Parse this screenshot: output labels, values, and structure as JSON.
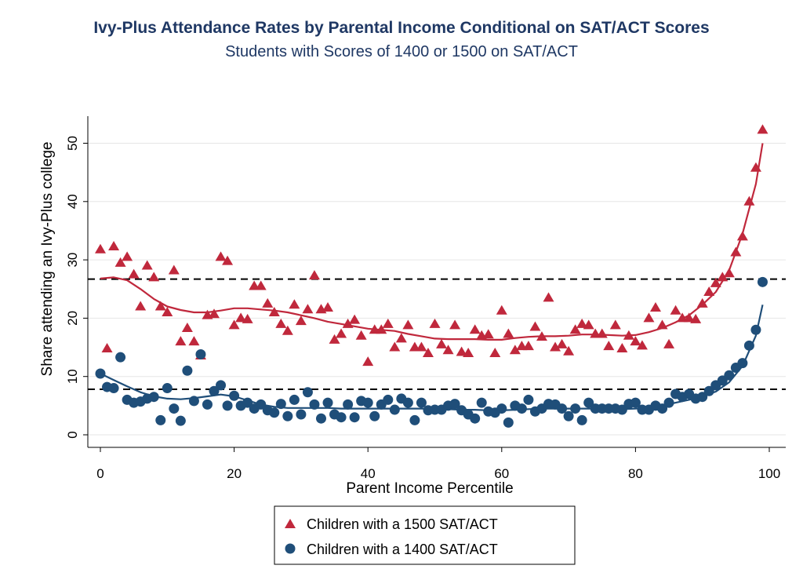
{
  "chart_data": {
    "type": "scatter",
    "title": "Ivy-Plus Attendance Rates by Parental Income Conditional on SAT/ACT Scores",
    "subtitle": "Students with Scores of 1400 or 1500 on SAT/ACT",
    "xlabel": "Parent Income Percentile",
    "ylabel": "Share attending an Ivy-Plus college",
    "xlim": [
      0,
      100
    ],
    "ylim": [
      0,
      53
    ],
    "x_ticks": [
      0,
      20,
      40,
      60,
      80,
      100
    ],
    "y_ticks": [
      0,
      10,
      20,
      30,
      40,
      50
    ],
    "grid": true,
    "legend_position": "bottom-center",
    "reference_lines": [
      26.7,
      7.8
    ],
    "series": [
      {
        "name": "Children with a 1500 SAT/ACT",
        "marker": "triangle",
        "color": "#c0283c",
        "x": [
          0,
          1,
          2,
          3,
          4,
          5,
          6,
          7,
          8,
          9,
          10,
          11,
          12,
          13,
          14,
          15,
          16,
          17,
          18,
          19,
          20,
          21,
          22,
          23,
          24,
          25,
          26,
          27,
          28,
          29,
          30,
          31,
          32,
          33,
          34,
          35,
          36,
          37,
          38,
          39,
          40,
          41,
          42,
          43,
          44,
          45,
          46,
          47,
          48,
          49,
          50,
          51,
          52,
          53,
          54,
          55,
          56,
          57,
          58,
          59,
          60,
          61,
          62,
          63,
          64,
          65,
          66,
          67,
          68,
          69,
          70,
          71,
          72,
          73,
          74,
          75,
          76,
          77,
          78,
          79,
          80,
          81,
          82,
          83,
          84,
          85,
          86,
          87,
          88,
          89,
          90,
          91,
          92,
          93,
          94,
          95,
          96,
          97,
          98,
          99
        ],
        "y": [
          31.8,
          14.8,
          32.3,
          29.5,
          30.5,
          27.5,
          22,
          29,
          27,
          22,
          21,
          28.2,
          16,
          18.3,
          16,
          13.6,
          20.5,
          20.7,
          30.5,
          29.8,
          18.8,
          20,
          19.8,
          25.5,
          25.5,
          22.5,
          21,
          19,
          17.8,
          22.3,
          19.5,
          21.5,
          27.3,
          21.5,
          21.8,
          16.3,
          17.3,
          19,
          19.7,
          17,
          12.5,
          18,
          18,
          19,
          15,
          16.5,
          18.8,
          15,
          15,
          14,
          19,
          15.5,
          14.5,
          18.8,
          14.2,
          14,
          18,
          17,
          17.2,
          14,
          21.3,
          17.3,
          14.5,
          15.2,
          15.2,
          18.5,
          16.8,
          23.5,
          15,
          15.5,
          14.3,
          18,
          19,
          18.8,
          17.3,
          17.3,
          15.2,
          18.8,
          14.8,
          17,
          16,
          15.3,
          20,
          21.8,
          18.8,
          15.5,
          21.3,
          20,
          20,
          19.8,
          22.5,
          24.5,
          26,
          27,
          27.7,
          31.3,
          34,
          40,
          45.8,
          52.3
        ]
      },
      {
        "name": "Children with a 1400 SAT/ACT",
        "marker": "circle",
        "color": "#1f4e79",
        "x": [
          0,
          1,
          2,
          3,
          4,
          5,
          6,
          7,
          8,
          9,
          10,
          11,
          12,
          13,
          14,
          15,
          16,
          17,
          18,
          19,
          20,
          21,
          22,
          23,
          24,
          25,
          26,
          27,
          28,
          29,
          30,
          31,
          32,
          33,
          34,
          35,
          36,
          37,
          38,
          39,
          40,
          41,
          42,
          43,
          44,
          45,
          46,
          47,
          48,
          49,
          50,
          51,
          52,
          53,
          54,
          55,
          56,
          57,
          58,
          59,
          60,
          61,
          62,
          63,
          64,
          65,
          66,
          67,
          68,
          69,
          70,
          71,
          72,
          73,
          74,
          75,
          76,
          77,
          78,
          79,
          80,
          81,
          82,
          83,
          84,
          85,
          86,
          87,
          88,
          89,
          90,
          91,
          92,
          93,
          94,
          95,
          96,
          97,
          98,
          99
        ],
        "y": [
          10.5,
          8.2,
          8,
          13.3,
          6,
          5.5,
          5.7,
          6.2,
          6.5,
          2.5,
          8,
          4.5,
          2.4,
          11,
          5.8,
          13.8,
          5.2,
          7.5,
          8.5,
          5,
          6.7,
          5,
          5.5,
          4.5,
          5.2,
          4.2,
          3.8,
          5.3,
          3.2,
          6,
          3.5,
          7.3,
          5.2,
          2.8,
          5.5,
          3.5,
          3,
          5.2,
          3,
          5.8,
          5.5,
          3.2,
          5.2,
          6,
          4.3,
          6.2,
          5.5,
          2.5,
          5.5,
          4.2,
          4.3,
          4.3,
          5,
          5.3,
          4.2,
          3.5,
          2.8,
          5.5,
          4,
          3.8,
          4.5,
          2.1,
          5,
          4.5,
          6,
          4,
          4.5,
          5.3,
          5.2,
          4.5,
          3.2,
          4.5,
          2.5,
          5.5,
          4.5,
          4.5,
          4.5,
          4.5,
          4.3,
          5.3,
          5.5,
          4.3,
          4.3,
          5,
          4.5,
          5.5,
          7,
          6.5,
          7,
          6.2,
          6.5,
          7.5,
          8.5,
          9.3,
          10.2,
          11.5,
          12.3,
          15.3,
          18,
          26.2
        ]
      }
    ],
    "fit_lines": [
      {
        "series": "Children with a 1500 SAT/ACT",
        "x": [
          0,
          2,
          4,
          6,
          8,
          10,
          12,
          14,
          16,
          18,
          20,
          22,
          24,
          26,
          28,
          30,
          32,
          34,
          36,
          38,
          40,
          42,
          44,
          46,
          48,
          50,
          52,
          54,
          56,
          58,
          60,
          62,
          64,
          66,
          68,
          70,
          72,
          74,
          76,
          78,
          80,
          82,
          84,
          86,
          88,
          90,
          92,
          94,
          96,
          98,
          99
        ],
        "y": [
          26.8,
          27,
          26.5,
          25,
          23.3,
          22,
          21.4,
          21,
          21,
          21.3,
          21.7,
          21.7,
          21.5,
          21.3,
          21,
          20.5,
          20,
          19.4,
          19,
          18.6,
          18.2,
          18,
          17.8,
          17.3,
          16.9,
          16.5,
          16.4,
          16.4,
          16.4,
          16.3,
          16.3,
          16.6,
          16.8,
          16.9,
          16.9,
          17,
          17.2,
          17.2,
          17.1,
          17,
          17.1,
          17.6,
          18.3,
          19.3,
          20.5,
          22.3,
          24.5,
          28.2,
          34.5,
          43,
          50
        ]
      },
      {
        "series": "Children with a 1400 SAT/ACT",
        "x": [
          0,
          2,
          4,
          6,
          8,
          10,
          12,
          14,
          16,
          18,
          20,
          22,
          24,
          26,
          28,
          30,
          32,
          34,
          36,
          38,
          40,
          42,
          44,
          46,
          48,
          50,
          52,
          54,
          56,
          58,
          60,
          62,
          64,
          66,
          68,
          70,
          72,
          74,
          76,
          78,
          80,
          82,
          84,
          86,
          88,
          90,
          92,
          94,
          96,
          98,
          99
        ],
        "y": [
          10.5,
          9.4,
          8.3,
          7.3,
          6.6,
          6.2,
          6.1,
          6.3,
          6.6,
          6.9,
          6.6,
          5.9,
          5.2,
          4.8,
          4.6,
          4.6,
          4.6,
          4.6,
          4.5,
          4.5,
          4.5,
          4.5,
          4.5,
          4.5,
          4.5,
          4.4,
          4.4,
          4.3,
          4.3,
          4.2,
          4.2,
          4.3,
          4.4,
          4.5,
          4.5,
          4.5,
          4.5,
          4.5,
          4.4,
          4.4,
          4.5,
          4.7,
          5,
          5.5,
          6,
          6.6,
          7.4,
          9,
          11.8,
          17,
          22.3
        ]
      }
    ]
  }
}
